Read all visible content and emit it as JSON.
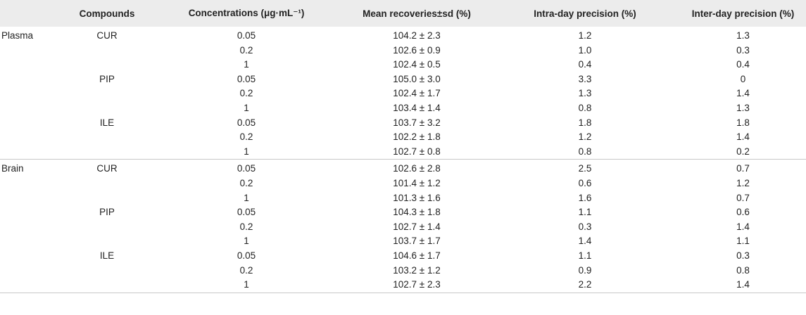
{
  "table": {
    "headers": [
      "Compounds",
      "Concentrations (μg·mL⁻¹)",
      "Mean recoveries±sd (%)",
      "Intra-day precision (%)",
      "Inter-day precision (%)"
    ],
    "groups": [
      {
        "matrix": "Plasma",
        "compounds": [
          {
            "name": "CUR",
            "rows": [
              [
                "0.05",
                "104.2 ± 2.3",
                "1.2",
                "1.3"
              ],
              [
                "0.2",
                "102.6 ± 0.9",
                "1.0",
                "0.3"
              ],
              [
                "1",
                "102.4 ± 0.5",
                "0.4",
                "0.4"
              ]
            ]
          },
          {
            "name": "PIP",
            "rows": [
              [
                "0.05",
                "105.0 ± 3.0",
                "3.3",
                "0"
              ],
              [
                "0.2",
                "102.4 ± 1.7",
                "1.3",
                "1.4"
              ],
              [
                "1",
                "103.4 ± 1.4",
                "0.8",
                "1.3"
              ]
            ]
          },
          {
            "name": "ILE",
            "rows": [
              [
                "0.05",
                "103.7 ± 3.2",
                "1.8",
                "1.8"
              ],
              [
                "0.2",
                "102.2 ± 1.8",
                "1.2",
                "1.4"
              ],
              [
                "1",
                "102.7 ± 0.8",
                "0.8",
                "0.2"
              ]
            ]
          }
        ]
      },
      {
        "matrix": "Brain",
        "compounds": [
          {
            "name": "CUR",
            "rows": [
              [
                "0.05",
                "102.6 ± 2.8",
                "2.5",
                "0.7"
              ],
              [
                "0.2",
                "101.4 ± 1.2",
                "0.6",
                "1.2"
              ],
              [
                "1",
                "101.3 ± 1.6",
                "1.6",
                "0.7"
              ]
            ]
          },
          {
            "name": "PIP",
            "rows": [
              [
                "0.05",
                "104.3 ± 1.8",
                "1.1",
                "0.6"
              ],
              [
                "0.2",
                "102.7 ± 1.4",
                "0.3",
                "1.4"
              ],
              [
                "1",
                "103.7 ± 1.7",
                "1.4",
                "1.1"
              ]
            ]
          },
          {
            "name": "ILE",
            "rows": [
              [
                "0.05",
                "104.6 ± 1.7",
                "1.1",
                "0.3"
              ],
              [
                "0.2",
                "103.2 ± 1.2",
                "0.9",
                "0.8"
              ],
              [
                "1",
                "102.7 ± 2.3",
                "2.2",
                "1.4"
              ]
            ]
          }
        ]
      }
    ]
  }
}
